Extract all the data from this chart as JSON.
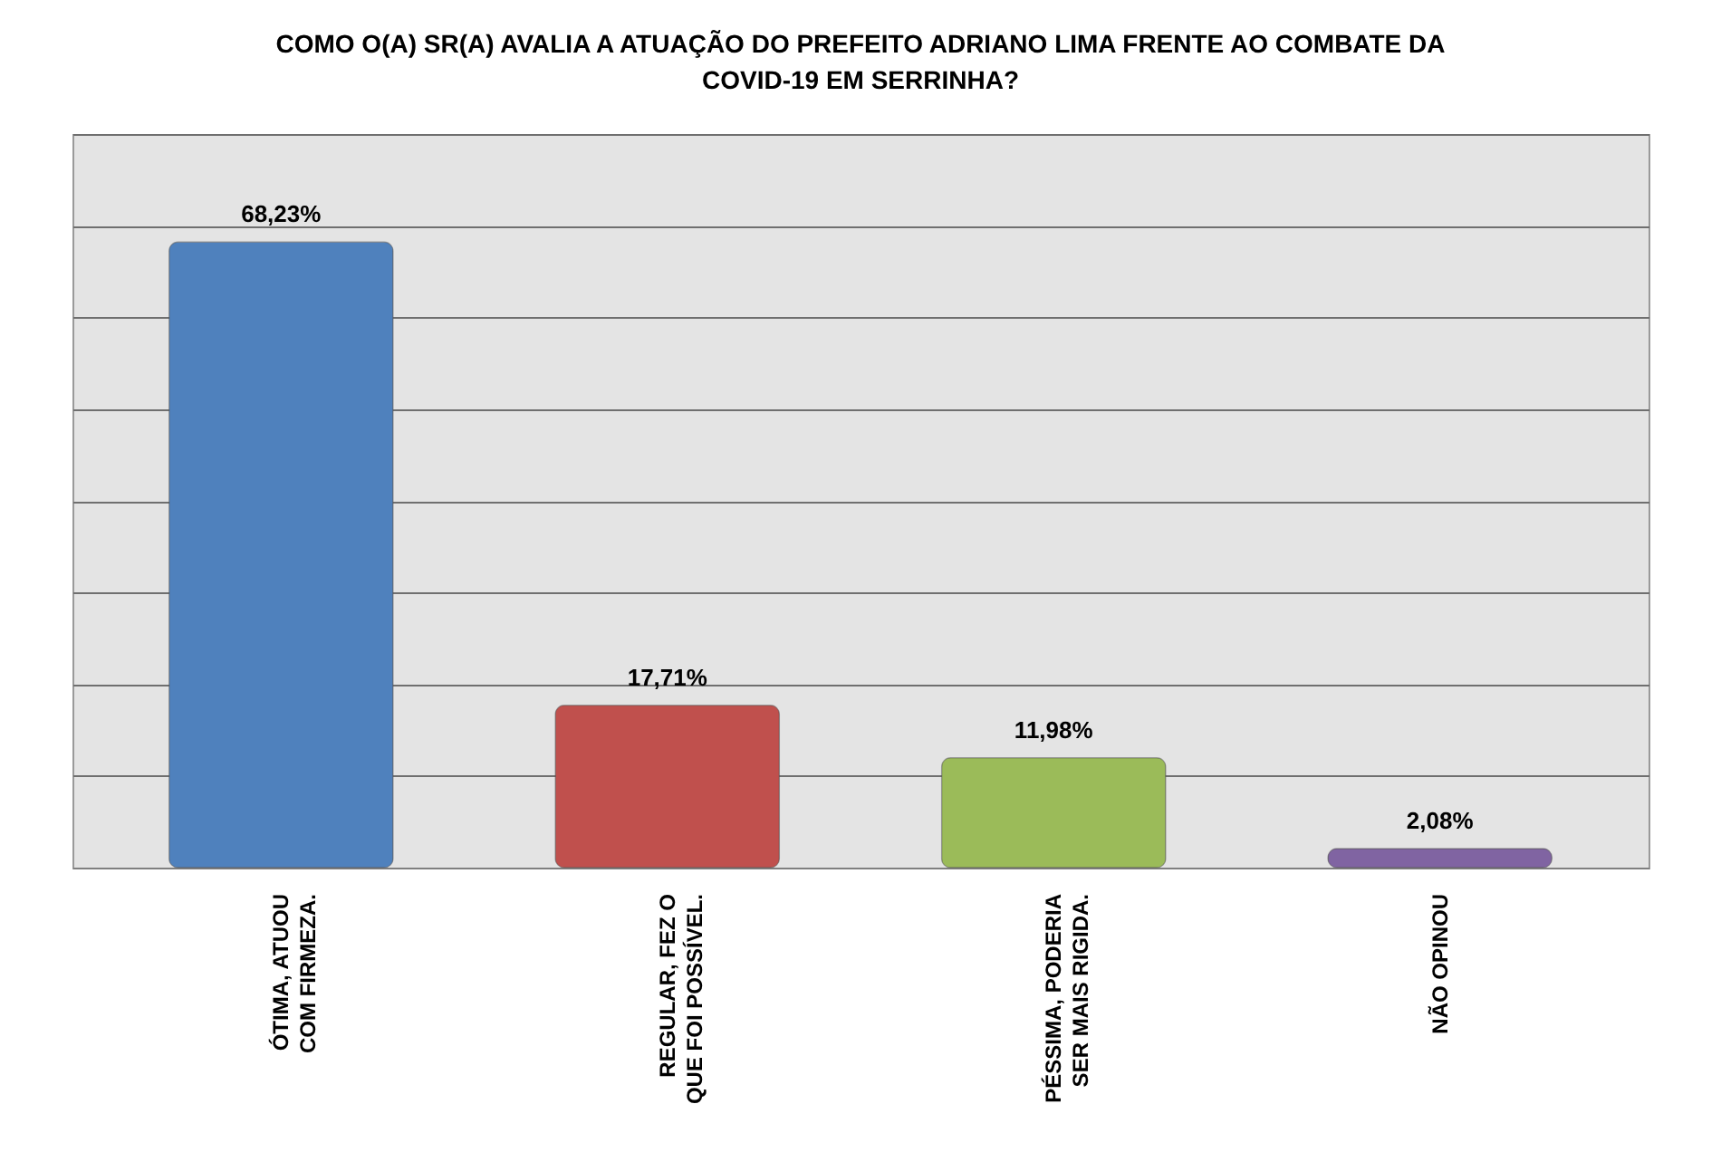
{
  "chart_data": {
    "type": "bar",
    "title": "COMO O(A) SR(A) AVALIA A ATUAÇÃO DO PREFEITO ADRIANO LIMA FRENTE AO COMBATE DA COVID-19 EM SERRINHA?",
    "categories": [
      "ÓTIMA, ATUOU COM FIRMEZA.",
      "REGULAR, FEZ O QUE FOI POSSÍVEL.",
      "PÉSSIMA, PODERIA SER MAIS RIGIDA.",
      "NÃO OPINOU"
    ],
    "values": [
      68.23,
      17.71,
      11.98,
      2.08
    ],
    "colors": [
      "#4f81bd",
      "#c0504d",
      "#9bbb59",
      "#8064a2"
    ],
    "value_labels": [
      "68,23%",
      "17,71%",
      "11,98%",
      "2,08%"
    ],
    "ylim": [
      0,
      80
    ],
    "yticks": [
      {
        "value": 0,
        "label": null
      },
      {
        "value": 10,
        "label": null
      },
      {
        "value": 20,
        "label": null
      },
      {
        "value": 30,
        "label": null
      },
      {
        "value": 40,
        "label": null
      },
      {
        "value": 50,
        "label": null
      },
      {
        "value": 60,
        "label": null
      },
      {
        "value": 70,
        "label": null
      },
      {
        "value": 80,
        "label": null
      }
    ],
    "grid": "y",
    "tick_labels": "x"
  }
}
